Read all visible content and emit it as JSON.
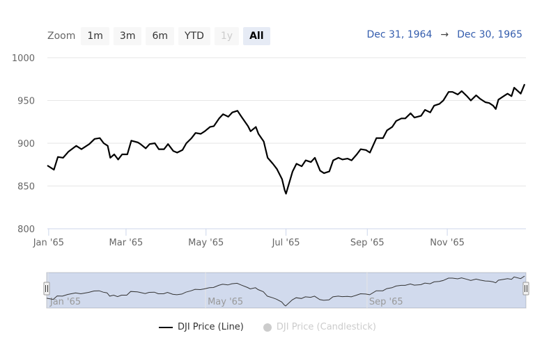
{
  "zoom": {
    "label": "Zoom",
    "buttons": [
      {
        "label": "1m",
        "state": "normal"
      },
      {
        "label": "3m",
        "state": "normal"
      },
      {
        "label": "6m",
        "state": "normal"
      },
      {
        "label": "YTD",
        "state": "normal"
      },
      {
        "label": "1y",
        "state": "disabled"
      },
      {
        "label": "All",
        "state": "active"
      }
    ]
  },
  "range": {
    "from": "Dec 31, 1964",
    "arrow": "→",
    "to": "Dec 30, 1965"
  },
  "legend": [
    {
      "label": "DJI Price (Line)",
      "visible": true
    },
    {
      "label": "DJI Price (Candlestick)",
      "visible": false
    }
  ],
  "chart_data": {
    "type": "line",
    "x_type": "date",
    "x_ticks": [
      "Jan '65",
      "Mar '65",
      "May '65",
      "Jul '65",
      "Sep '65",
      "Nov '65"
    ],
    "y_ticks": [
      800,
      850,
      900,
      950,
      1000
    ],
    "ylim": [
      800,
      1000
    ],
    "xlim": [
      "1964-12-31",
      "1965-12-31"
    ],
    "grid": true,
    "navigator_ticks": [
      "Jan '65",
      "May '65",
      "Sep '65"
    ],
    "series": [
      {
        "name": "DJI Price (Line)",
        "color": "#000000",
        "points": [
          [
            "1964-12-31",
            874
          ],
          [
            "1965-01-05",
            869
          ],
          [
            "1965-01-08",
            884
          ],
          [
            "1965-01-12",
            883
          ],
          [
            "1965-01-16",
            890
          ],
          [
            "1965-01-22",
            897
          ],
          [
            "1965-01-26",
            893
          ],
          [
            "1965-02-01",
            899
          ],
          [
            "1965-02-05",
            905
          ],
          [
            "1965-02-09",
            906
          ],
          [
            "1965-02-12",
            900
          ],
          [
            "1965-02-15",
            897
          ],
          [
            "1965-02-17",
            883
          ],
          [
            "1965-02-20",
            887
          ],
          [
            "1965-02-23",
            881
          ],
          [
            "1965-02-26",
            887
          ],
          [
            "1965-03-02",
            887
          ],
          [
            "1965-03-05",
            903
          ],
          [
            "1965-03-10",
            901
          ],
          [
            "1965-03-12",
            899
          ],
          [
            "1965-03-16",
            894
          ],
          [
            "1965-03-19",
            899
          ],
          [
            "1965-03-23",
            900
          ],
          [
            "1965-03-26",
            893
          ],
          [
            "1965-03-30",
            893
          ],
          [
            "1965-04-02",
            899
          ],
          [
            "1965-04-06",
            891
          ],
          [
            "1965-04-09",
            889
          ],
          [
            "1965-04-13",
            892
          ],
          [
            "1965-04-16",
            900
          ],
          [
            "1965-04-20",
            906
          ],
          [
            "1965-04-23",
            912
          ],
          [
            "1965-04-27",
            911
          ],
          [
            "1965-04-30",
            914
          ],
          [
            "1965-05-04",
            919
          ],
          [
            "1965-05-07",
            920
          ],
          [
            "1965-05-11",
            929
          ],
          [
            "1965-05-14",
            934
          ],
          [
            "1965-05-18",
            931
          ],
          [
            "1965-05-21",
            936
          ],
          [
            "1965-05-25",
            938
          ],
          [
            "1965-05-28",
            931
          ],
          [
            "1965-06-02",
            920
          ],
          [
            "1965-06-04",
            914
          ],
          [
            "1965-06-08",
            919
          ],
          [
            "1965-06-10",
            911
          ],
          [
            "1965-06-14",
            902
          ],
          [
            "1965-06-17",
            883
          ],
          [
            "1965-06-21",
            876
          ],
          [
            "1965-06-24",
            870
          ],
          [
            "1965-06-28",
            858
          ],
          [
            "1965-06-30",
            845
          ],
          [
            "1965-07-01",
            841
          ],
          [
            "1965-07-06",
            867
          ],
          [
            "1965-07-09",
            876
          ],
          [
            "1965-07-13",
            873
          ],
          [
            "1965-07-16",
            880
          ],
          [
            "1965-07-20",
            878
          ],
          [
            "1965-07-23",
            883
          ],
          [
            "1965-07-27",
            868
          ],
          [
            "1965-07-30",
            865
          ],
          [
            "1965-08-03",
            867
          ],
          [
            "1965-08-06",
            880
          ],
          [
            "1965-08-10",
            883
          ],
          [
            "1965-08-13",
            881
          ],
          [
            "1965-08-17",
            882
          ],
          [
            "1965-08-20",
            880
          ],
          [
            "1965-08-24",
            887
          ],
          [
            "1965-08-27",
            893
          ],
          [
            "1965-08-31",
            892
          ],
          [
            "1965-09-03",
            889
          ],
          [
            "1965-09-08",
            906
          ],
          [
            "1965-09-13",
            906
          ],
          [
            "1965-09-16",
            915
          ],
          [
            "1965-09-20",
            919
          ],
          [
            "1965-09-23",
            926
          ],
          [
            "1965-09-27",
            929
          ],
          [
            "1965-09-30",
            929
          ],
          [
            "1965-10-04",
            935
          ],
          [
            "1965-10-07",
            930
          ],
          [
            "1965-10-12",
            932
          ],
          [
            "1965-10-15",
            939
          ],
          [
            "1965-10-19",
            936
          ],
          [
            "1965-10-22",
            944
          ],
          [
            "1965-10-26",
            946
          ],
          [
            "1965-10-29",
            950
          ],
          [
            "1965-11-02",
            960
          ],
          [
            "1965-11-05",
            960
          ],
          [
            "1965-11-09",
            957
          ],
          [
            "1965-11-12",
            961
          ],
          [
            "1965-11-16",
            955
          ],
          [
            "1965-11-19",
            950
          ],
          [
            "1965-11-23",
            956
          ],
          [
            "1965-11-26",
            952
          ],
          [
            "1965-11-30",
            948
          ],
          [
            "1965-12-03",
            947
          ],
          [
            "1965-12-06",
            944
          ],
          [
            "1965-12-08",
            940
          ],
          [
            "1965-12-10",
            951
          ],
          [
            "1965-12-14",
            955
          ],
          [
            "1965-12-17",
            958
          ],
          [
            "1965-12-20",
            955
          ],
          [
            "1965-12-22",
            965
          ],
          [
            "1965-12-27",
            958
          ],
          [
            "1965-12-30",
            969
          ]
        ]
      }
    ]
  }
}
